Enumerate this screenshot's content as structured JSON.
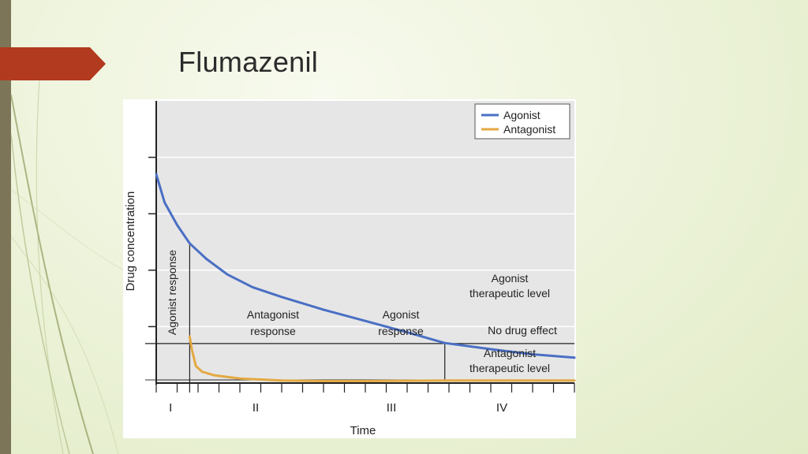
{
  "slide": {
    "title": "Flumazenil"
  },
  "colors": {
    "accent": "#b23a1e",
    "side_bar": "#7c7558",
    "agonist": "#4a6fc4",
    "antagonist": "#e3a942",
    "plot_background": "#e6e6e6"
  },
  "chart_data": {
    "type": "line",
    "title": "",
    "xlabel": "Time",
    "ylabel": "Drug concentration",
    "xlim": [
      0,
      10
    ],
    "ylim": [
      0,
      10
    ],
    "grid": true,
    "legend_position": "top-right",
    "phase_labels": [
      "I",
      "II",
      "III",
      "IV"
    ],
    "phase_boundaries": [
      0.8,
      6.9
    ],
    "agonist_therapeutic_level": 1.4,
    "series": [
      {
        "name": "Agonist",
        "color": "#4a6fc4",
        "x": [
          0,
          0.2,
          0.5,
          0.8,
          1.2,
          1.7,
          2.3,
          3.0,
          4.0,
          5.0,
          6.0,
          6.9,
          8.0,
          9.0,
          10.0
        ],
        "y": [
          7.4,
          6.4,
          5.6,
          4.95,
          4.4,
          3.85,
          3.4,
          3.05,
          2.6,
          2.2,
          1.8,
          1.42,
          1.2,
          1.02,
          0.9
        ]
      },
      {
        "name": "Antagonist",
        "color": "#e3a942",
        "x": [
          0.8,
          0.85,
          0.95,
          1.1,
          1.4,
          2.0,
          3.0,
          4.0,
          5.0,
          6.0,
          7.0,
          8.0,
          9.0,
          10.0
        ],
        "y": [
          1.65,
          1.2,
          0.6,
          0.4,
          0.27,
          0.16,
          0.09,
          0.07,
          0.07,
          0.08,
          0.09,
          0.09,
          0.09,
          0.09
        ]
      }
    ],
    "annotations": {
      "agonist_response_left": "Agonist response",
      "antagonist_response": [
        "Antagonist",
        "response"
      ],
      "agonist_response": [
        "Agonist",
        "response"
      ],
      "agonist_therapeutic": [
        "Agonist",
        "therapeutic level"
      ],
      "no_drug_effect": "No drug effect",
      "antagonist_therapeutic": [
        "Antagonist",
        "therapeutic level"
      ]
    }
  }
}
